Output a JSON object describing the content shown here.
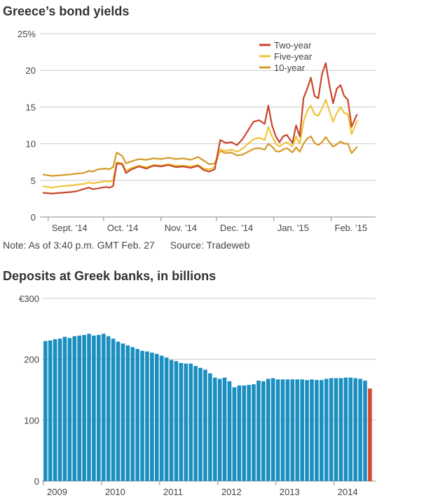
{
  "charts": {
    "yields_title": "Greece’s bond yields",
    "deposits_title": "Deposits at Greek banks, in billions",
    "note": "Note: As of 3:40 p.m. GMT Feb. 27",
    "source": "Source: Tradeweb"
  },
  "colors": {
    "two_year": "#c8462c",
    "five_year": "#f0c43a",
    "ten_year": "#d59a2a",
    "bar": "#1a8fc0",
    "bar_last": "#d9482b",
    "grid": "#cccccc",
    "axis": "#888888"
  },
  "chart_data": [
    {
      "type": "line",
      "title": "Greece’s bond yields",
      "ylim": [
        0,
        25
      ],
      "yticks": [
        0,
        5,
        10,
        15,
        20,
        25
      ],
      "ytick_labels": [
        "0",
        "5",
        "10",
        "15",
        "20",
        "25%"
      ],
      "xlim": [
        0,
        180
      ],
      "xticks": [
        {
          "pos": 9,
          "label": "Sept. '14"
        },
        {
          "pos": 39,
          "label": "Oct. '14"
        },
        {
          "pos": 70,
          "label": "Nov. '14"
        },
        {
          "pos": 100,
          "label": "Dec. '14"
        },
        {
          "pos": 131,
          "label": "Jan. '15"
        },
        {
          "pos": 162,
          "label": "Feb. '15"
        }
      ],
      "legend": [
        "Two-year",
        "Five-year",
        "10-year"
      ],
      "legend_position": "top-right",
      "series": [
        {
          "name": "Two-year",
          "points": [
            [
              0,
              3.3
            ],
            [
              5,
              3.2
            ],
            [
              10,
              3.3
            ],
            [
              15,
              3.4
            ],
            [
              18,
              3.5
            ],
            [
              22,
              3.8
            ],
            [
              25,
              4.0
            ],
            [
              27,
              3.8
            ],
            [
              30,
              3.9
            ],
            [
              34,
              4.1
            ],
            [
              36,
              4.0
            ],
            [
              38,
              4.2
            ],
            [
              40,
              7.3
            ],
            [
              43,
              7.2
            ],
            [
              45,
              6.0
            ],
            [
              48,
              6.5
            ],
            [
              52,
              6.9
            ],
            [
              56,
              6.6
            ],
            [
              60,
              7.0
            ],
            [
              64,
              6.9
            ],
            [
              68,
              7.1
            ],
            [
              72,
              6.8
            ],
            [
              76,
              6.9
            ],
            [
              80,
              6.7
            ],
            [
              84,
              7.0
            ],
            [
              87,
              6.4
            ],
            [
              90,
              6.2
            ],
            [
              93,
              6.5
            ],
            [
              96,
              10.5
            ],
            [
              99,
              10.1
            ],
            [
              102,
              10.2
            ],
            [
              105,
              9.8
            ],
            [
              108,
              10.6
            ],
            [
              111,
              11.8
            ],
            [
              114,
              13.0
            ],
            [
              117,
              13.2
            ],
            [
              120,
              12.7
            ],
            [
              122,
              15.2
            ],
            [
              124,
              12.5
            ],
            [
              126,
              11.0
            ],
            [
              128,
              10.2
            ],
            [
              130,
              11.0
            ],
            [
              132,
              11.2
            ],
            [
              135,
              10.1
            ],
            [
              137,
              12.5
            ],
            [
              139,
              11.0
            ],
            [
              141,
              16.2
            ],
            [
              143,
              17.5
            ],
            [
              145,
              19.0
            ],
            [
              147,
              16.5
            ],
            [
              149,
              16.2
            ],
            [
              151,
              19.5
            ],
            [
              153,
              21.0
            ],
            [
              155,
              18.0
            ],
            [
              157,
              15.5
            ],
            [
              159,
              17.5
            ],
            [
              161,
              18.0
            ],
            [
              163,
              16.5
            ],
            [
              165,
              16.0
            ],
            [
              167,
              12.3
            ],
            [
              169,
              13.5
            ],
            [
              170,
              14.0
            ]
          ]
        },
        {
          "name": "Five-year",
          "points": [
            [
              0,
              4.2
            ],
            [
              5,
              4.0
            ],
            [
              10,
              4.2
            ],
            [
              15,
              4.3
            ],
            [
              18,
              4.4
            ],
            [
              22,
              4.5
            ],
            [
              25,
              4.7
            ],
            [
              27,
              4.6
            ],
            [
              30,
              4.7
            ],
            [
              34,
              4.9
            ],
            [
              36,
              4.8
            ],
            [
              38,
              5.0
            ],
            [
              40,
              7.5
            ],
            [
              43,
              7.3
            ],
            [
              45,
              6.3
            ],
            [
              48,
              6.7
            ],
            [
              52,
              7.0
            ],
            [
              56,
              6.8
            ],
            [
              60,
              7.1
            ],
            [
              64,
              7.0
            ],
            [
              68,
              7.2
            ],
            [
              72,
              7.0
            ],
            [
              76,
              7.0
            ],
            [
              80,
              6.9
            ],
            [
              84,
              7.1
            ],
            [
              87,
              6.6
            ],
            [
              90,
              6.5
            ],
            [
              93,
              6.8
            ],
            [
              96,
              9.2
            ],
            [
              99,
              9.0
            ],
            [
              102,
              9.2
            ],
            [
              105,
              8.9
            ],
            [
              108,
              9.3
            ],
            [
              111,
              10.0
            ],
            [
              114,
              10.6
            ],
            [
              117,
              10.8
            ],
            [
              120,
              10.5
            ],
            [
              122,
              12.3
            ],
            [
              124,
              11.0
            ],
            [
              126,
              10.0
            ],
            [
              128,
              9.6
            ],
            [
              130,
              10.0
            ],
            [
              132,
              10.2
            ],
            [
              135,
              9.6
            ],
            [
              137,
              11.0
            ],
            [
              139,
              10.0
            ],
            [
              141,
              13.0
            ],
            [
              143,
              14.5
            ],
            [
              145,
              15.2
            ],
            [
              147,
              14.0
            ],
            [
              149,
              13.8
            ],
            [
              151,
              14.8
            ],
            [
              153,
              16.0
            ],
            [
              155,
              14.5
            ],
            [
              157,
              13.0
            ],
            [
              159,
              14.2
            ],
            [
              161,
              15.0
            ],
            [
              163,
              14.2
            ],
            [
              165,
              14.0
            ],
            [
              167,
              11.3
            ],
            [
              169,
              12.5
            ],
            [
              170,
              13.2
            ]
          ]
        },
        {
          "name": "10-year",
          "points": [
            [
              0,
              5.8
            ],
            [
              5,
              5.6
            ],
            [
              10,
              5.7
            ],
            [
              15,
              5.8
            ],
            [
              18,
              5.9
            ],
            [
              22,
              6.0
            ],
            [
              25,
              6.3
            ],
            [
              27,
              6.2
            ],
            [
              30,
              6.5
            ],
            [
              34,
              6.6
            ],
            [
              36,
              6.5
            ],
            [
              38,
              6.8
            ],
            [
              40,
              8.8
            ],
            [
              43,
              8.3
            ],
            [
              45,
              7.3
            ],
            [
              48,
              7.6
            ],
            [
              52,
              7.9
            ],
            [
              56,
              7.8
            ],
            [
              60,
              8.0
            ],
            [
              64,
              7.9
            ],
            [
              68,
              8.1
            ],
            [
              72,
              7.9
            ],
            [
              76,
              8.0
            ],
            [
              80,
              7.8
            ],
            [
              84,
              8.2
            ],
            [
              87,
              7.7
            ],
            [
              90,
              7.2
            ],
            [
              93,
              7.3
            ],
            [
              96,
              9.0
            ],
            [
              99,
              8.7
            ],
            [
              102,
              8.8
            ],
            [
              105,
              8.4
            ],
            [
              108,
              8.5
            ],
            [
              111,
              8.9
            ],
            [
              114,
              9.3
            ],
            [
              117,
              9.4
            ],
            [
              120,
              9.2
            ],
            [
              122,
              10.0
            ],
            [
              124,
              9.6
            ],
            [
              126,
              9.0
            ],
            [
              128,
              8.9
            ],
            [
              130,
              9.2
            ],
            [
              132,
              9.4
            ],
            [
              135,
              8.8
            ],
            [
              137,
              9.5
            ],
            [
              139,
              8.9
            ],
            [
              141,
              10.0
            ],
            [
              143,
              10.7
            ],
            [
              145,
              11.0
            ],
            [
              147,
              10.1
            ],
            [
              149,
              9.8
            ],
            [
              151,
              10.2
            ],
            [
              153,
              10.9
            ],
            [
              155,
              10.2
            ],
            [
              157,
              9.6
            ],
            [
              159,
              9.9
            ],
            [
              161,
              10.3
            ],
            [
              163,
              10.0
            ],
            [
              165,
              10.0
            ],
            [
              167,
              8.7
            ],
            [
              169,
              9.3
            ],
            [
              170,
              9.6
            ]
          ]
        }
      ]
    },
    {
      "type": "bar",
      "title": "Deposits at Greek banks, in billions",
      "ylim": [
        0,
        300
      ],
      "yticks": [
        0,
        100,
        200,
        300
      ],
      "ytick_labels": [
        "0",
        "100",
        "200",
        "€300"
      ],
      "xtick_labels": [
        "2009",
        "2010",
        "2011",
        "2012",
        "2013",
        "2014"
      ],
      "xtick_bar_index": [
        0,
        12,
        24,
        36,
        48,
        60
      ],
      "values": [
        230,
        231,
        233,
        234,
        237,
        235,
        238,
        239,
        240,
        242,
        239,
        240,
        242,
        238,
        234,
        229,
        226,
        223,
        220,
        217,
        214,
        213,
        211,
        209,
        206,
        203,
        199,
        197,
        194,
        193,
        193,
        189,
        186,
        183,
        177,
        170,
        168,
        170,
        164,
        154,
        157,
        157,
        158,
        159,
        165,
        164,
        168,
        169,
        167,
        167,
        167,
        167,
        167,
        167,
        166,
        167,
        166,
        166,
        168,
        169,
        169,
        169,
        170,
        170,
        169,
        168,
        165,
        152
      ],
      "highlight_last": true
    }
  ]
}
